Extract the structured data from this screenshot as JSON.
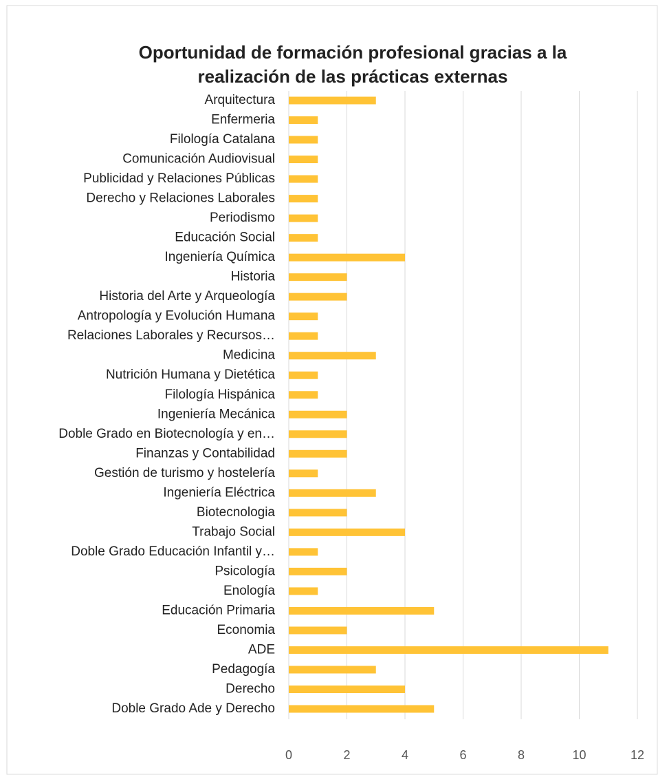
{
  "chart_data": {
    "type": "bar",
    "orientation": "horizontal",
    "title": [
      "Oportunidad de formación profesional gracias a la",
      "realización de las prácticas externas"
    ],
    "categories": [
      "Arquitectura",
      "Enfermeria",
      "Filología Catalana",
      "Comunicación Audiovisual",
      "Publicidad y Relaciones Públicas",
      "Derecho y Relaciones Laborales",
      "Periodismo",
      "Educación Social",
      "Ingeniería Química",
      "Historia",
      "Historia del Arte y Arqueología",
      "Antropología y Evolución Humana",
      "Relaciones Laborales y Recursos…",
      "Medicina",
      "Nutrición Humana y Dietética",
      "Filología Hispánica",
      "Ingeniería Mecánica",
      "Doble Grado en Biotecnología y en…",
      "Finanzas y Contabilidad",
      "Gestión de turismo y hostelería",
      "Ingeniería Eléctrica",
      "Biotecnologia",
      "Trabajo Social",
      "Doble Grado Educación Infantil y…",
      "Psicología",
      "Enología",
      "Educación Primaria",
      "Economia",
      "ADE",
      "Pedagogía",
      "Derecho",
      "Doble Grado Ade y Derecho"
    ],
    "values": [
      3,
      1,
      1,
      1,
      1,
      1,
      1,
      1,
      4,
      2,
      2,
      1,
      1,
      3,
      1,
      1,
      2,
      2,
      2,
      1,
      3,
      2,
      4,
      1,
      2,
      1,
      5,
      2,
      11,
      3,
      4,
      5
    ],
    "color": "#FFC336",
    "xlim": [
      0,
      12
    ],
    "xticks": [
      0,
      2,
      4,
      6,
      8,
      10,
      12
    ],
    "grid": true
  }
}
